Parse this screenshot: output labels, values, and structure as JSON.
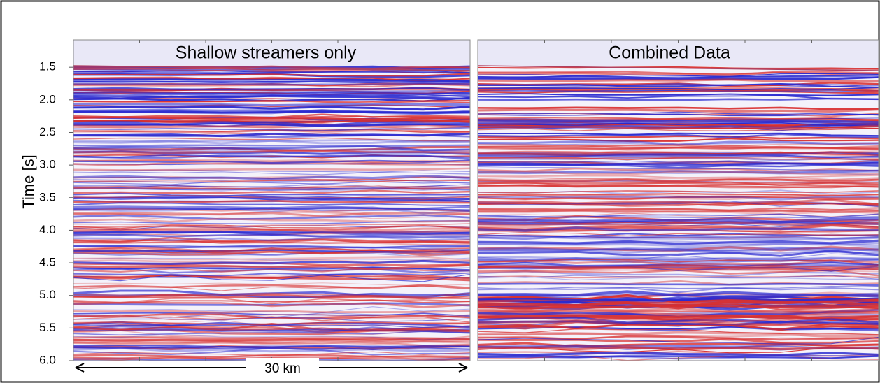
{
  "chart_data": {
    "type": "seismic",
    "ylabel": "Time [s]",
    "ylim": [
      1.08,
      6.0
    ],
    "yticks": [
      1.5,
      {
        "value": 2,
        "label": "2.0"
      },
      2.5,
      {
        "value": 3,
        "label": "3.0"
      },
      3.5,
      {
        "value": 4,
        "label": "4.0"
      },
      4.5,
      {
        "value": 5,
        "label": "5.0"
      },
      5.5,
      {
        "value": 6,
        "label": "6.0"
      }
    ],
    "panels": [
      {
        "title": "Shallow streamers only"
      },
      {
        "title": "Combined Data"
      }
    ],
    "scale_bar": "30 km"
  }
}
